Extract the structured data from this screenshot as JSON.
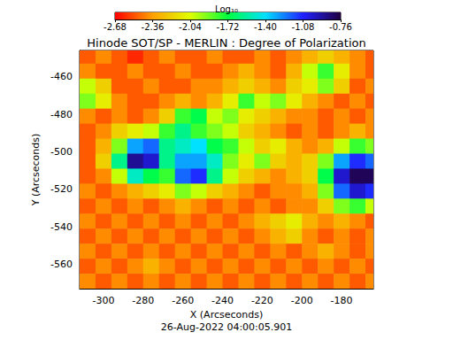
{
  "chart_data": {
    "type": "heatmap",
    "title": "Hinode SOT/SP - MERLIN : Degree of Polarization",
    "subtitle": "26-Aug-2022 04:00:05.901",
    "x_label": "X (Arcseconds)",
    "y_label": "Y (Arcseconds)",
    "xlim": [
      -312,
      -164
    ],
    "ylim": [
      -573,
      -446
    ],
    "xticks": [
      -300,
      -280,
      -260,
      -240,
      -220,
      -200,
      -180
    ],
    "yticks": [
      -560,
      -540,
      -520,
      -500,
      -480,
      -460
    ],
    "grid": false,
    "colors": [
      "#ff0000",
      "#ffa000",
      "#e0ff00",
      "#00ff40",
      "#00e0ff",
      "#2020ff",
      "#200040"
    ],
    "colorbar": {
      "label": "Log₁₀",
      "range": [
        -2.68,
        -0.76
      ],
      "ticks": [
        -2.68,
        -2.36,
        -2.04,
        -1.72,
        {
          "value": -1.4,
          "label": "-1.40"
        },
        -1.08,
        -0.76
      ]
    },
    "x": [
      -308,
      -300,
      -292,
      -284,
      -276,
      -268,
      -260,
      -252,
      -244,
      -236,
      -228,
      -220,
      -212,
      -204,
      -196,
      -188,
      -180,
      -172,
      -164
    ],
    "y": [
      -449,
      -457,
      -465,
      -473,
      -481,
      -489,
      -497,
      -505,
      -513,
      -521,
      -529,
      -537,
      -545,
      -553,
      -561,
      -569
    ],
    "cells": [
      [
        -2.5,
        -2.4,
        -2.5,
        -2.6,
        -2.5,
        -2.4,
        -2.5,
        -2.5,
        -2.4,
        -2.5,
        -2.5,
        -2.4,
        -2.5,
        -2.4,
        -2.3,
        -2.2,
        -2.3,
        -2.4,
        -2.5
      ],
      [
        -2.4,
        -2.5,
        -2.5,
        -2.4,
        -2.5,
        -2.5,
        -2.4,
        -2.5,
        -2.5,
        -2.4,
        -2.3,
        -2.4,
        -2.5,
        -2.3,
        -2.0,
        -1.8,
        -2.1,
        -2.4,
        -2.5
      ],
      [
        -2.0,
        -2.2,
        -2.5,
        -2.5,
        -2.4,
        -2.5,
        -2.5,
        -2.4,
        -2.4,
        -2.3,
        -2.2,
        -2.3,
        -2.4,
        -2.2,
        -2.1,
        -1.9,
        -2.2,
        -2.5,
        -2.4
      ],
      [
        -1.9,
        -2.1,
        -2.4,
        -2.5,
        -2.5,
        -2.4,
        -2.3,
        -2.4,
        -2.3,
        -2.1,
        -1.8,
        -2.0,
        -1.9,
        -2.1,
        -2.3,
        -2.4,
        -2.5,
        -2.4,
        -2.5
      ],
      [
        -2.4,
        -2.5,
        -2.4,
        -2.5,
        -2.4,
        -2.2,
        -1.8,
        -1.7,
        -2.0,
        -1.9,
        -2.1,
        -2.2,
        -2.3,
        -2.4,
        -2.4,
        -2.5,
        -2.4,
        -2.5,
        -2.4
      ],
      [
        -2.5,
        -2.4,
        -2.2,
        -2.1,
        -2.0,
        -1.8,
        -1.6,
        -1.8,
        -1.9,
        -2.0,
        -2.2,
        -2.3,
        -2.4,
        -2.5,
        -2.4,
        -2.5,
        -2.4,
        -2.3,
        -2.4
      ],
      [
        -2.5,
        -2.3,
        -1.9,
        -1.3,
        -1.2,
        -1.6,
        -1.5,
        -1.4,
        -1.7,
        -1.8,
        -2.0,
        -2.2,
        -2.1,
        -2.3,
        -2.4,
        -2.3,
        -2.0,
        -1.8,
        -1.9
      ],
      [
        -2.5,
        -2.2,
        -1.6,
        -0.9,
        -1.0,
        -1.6,
        -1.3,
        -1.3,
        -1.5,
        -1.9,
        -2.1,
        -1.9,
        -2.2,
        -2.3,
        -2.2,
        -1.9,
        -1.3,
        -1.1,
        -1.2
      ],
      [
        -2.5,
        -2.4,
        -2.0,
        -1.5,
        -1.7,
        -1.8,
        -1.2,
        -1.1,
        -1.6,
        -2.0,
        -2.2,
        -2.3,
        -2.4,
        -2.3,
        -2.2,
        -1.7,
        -1.0,
        -0.8,
        -0.8
      ],
      [
        -2.4,
        -2.5,
        -2.4,
        -2.3,
        -2.2,
        -2.1,
        -1.9,
        -2.0,
        -2.2,
        -2.3,
        -2.4,
        -2.5,
        -2.4,
        -2.4,
        -2.3,
        -1.9,
        -1.2,
        -1.0,
        -1.1
      ],
      [
        -2.5,
        -2.4,
        -2.5,
        -2.4,
        -2.5,
        -2.4,
        -2.3,
        -2.4,
        -2.5,
        -2.4,
        -2.5,
        -2.4,
        -2.5,
        -2.4,
        -2.4,
        -2.2,
        -1.9,
        -1.8,
        -2.0
      ],
      [
        -2.4,
        -2.5,
        -2.4,
        -2.5,
        -2.4,
        -2.5,
        -2.4,
        -2.5,
        -2.4,
        -2.5,
        -2.4,
        -2.3,
        -2.2,
        -2.1,
        -2.3,
        -2.4,
        -2.3,
        -2.4,
        -2.5
      ],
      [
        -2.5,
        -2.4,
        -2.5,
        -2.4,
        -2.5,
        -2.4,
        -2.5,
        -2.4,
        -2.5,
        -2.4,
        -2.5,
        -2.4,
        -2.3,
        -2.2,
        -2.4,
        -2.5,
        -2.4,
        -2.5,
        -2.4
      ],
      [
        -2.4,
        -2.5,
        -2.4,
        -2.5,
        -2.4,
        -2.5,
        -2.4,
        -2.5,
        -2.4,
        -2.5,
        -2.4,
        -2.5,
        -2.4,
        -2.5,
        -2.4,
        -2.3,
        -2.4,
        -2.5,
        -2.4
      ],
      [
        -2.5,
        -2.4,
        -2.5,
        -2.4,
        -2.3,
        -2.4,
        -2.5,
        -2.4,
        -2.5,
        -2.4,
        -2.5,
        -2.4,
        -2.5,
        -2.4,
        -2.5,
        -2.4,
        -2.5,
        -2.4,
        -2.5
      ],
      [
        -2.4,
        -2.5,
        -2.4,
        -2.5,
        -2.4,
        -2.5,
        -2.4,
        -2.5,
        -2.4,
        -2.5,
        -2.4,
        -2.5,
        -2.4,
        -2.5,
        -2.4,
        -2.5,
        -2.4,
        -2.5,
        -2.4
      ]
    ]
  }
}
